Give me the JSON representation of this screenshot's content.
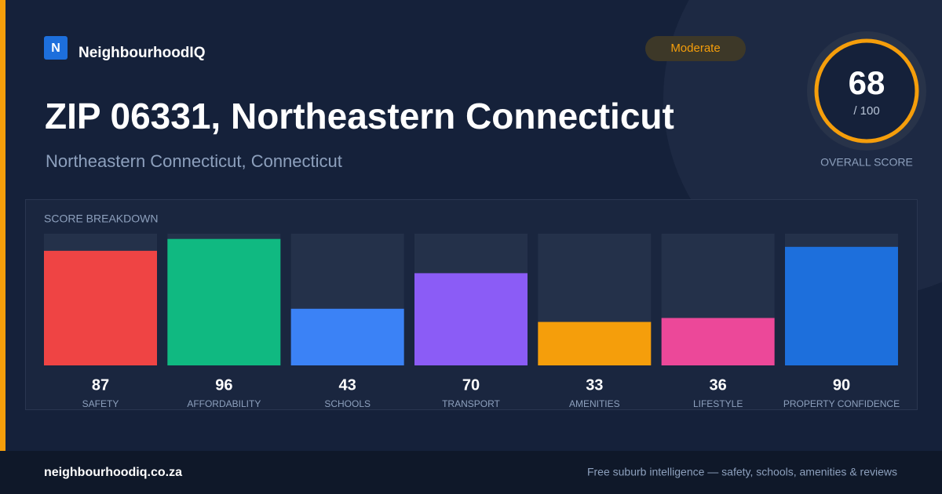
{
  "header": {
    "logo_letter": "N",
    "brand": "NeighbourhoodIQ",
    "badge": "Moderate"
  },
  "title": "ZIP 06331, Northeastern Connecticut",
  "subtitle": "Northeastern Connecticut, Connecticut",
  "overall": {
    "score": 68,
    "max_label": "/ 100",
    "label": "OVERALL SCORE"
  },
  "chart_data": {
    "type": "bar",
    "title": "SCORE BREAKDOWN",
    "categories": [
      "SAFETY",
      "AFFORDABILITY",
      "SCHOOLS",
      "TRANSPORT",
      "AMENITIES",
      "LIFESTYLE",
      "PROPERTY CONFIDENCE"
    ],
    "values": [
      87,
      96,
      43,
      70,
      33,
      36,
      90
    ],
    "colors": [
      "#ef4444",
      "#10b981",
      "#3b82f6",
      "#8b5cf6",
      "#f59e0b",
      "#ec4899",
      "#1d6fdc"
    ],
    "ylim": [
      0,
      100
    ]
  },
  "footer": {
    "url": "neighbourhoodiq.co.za",
    "tagline": "Free suburb intelligence — safety, schools, amenities & reviews"
  }
}
